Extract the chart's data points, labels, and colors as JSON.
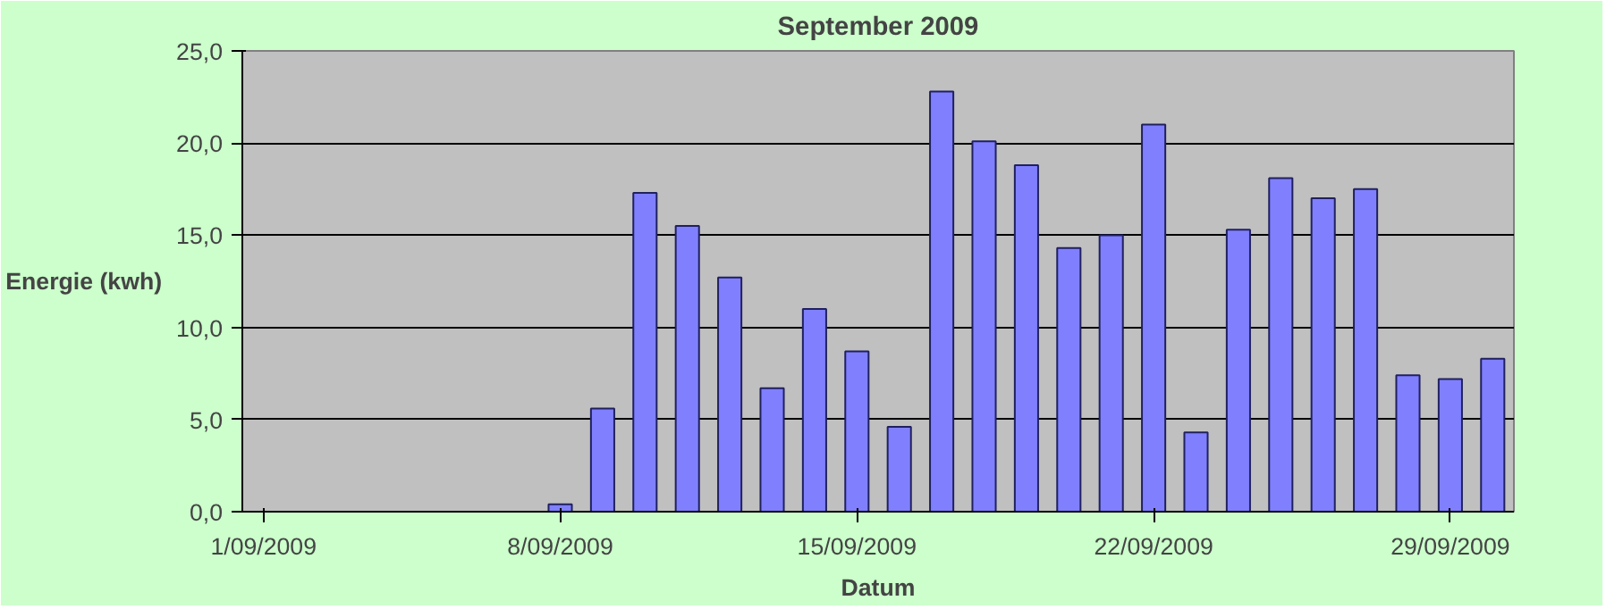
{
  "chart_data": {
    "type": "bar",
    "title": "September 2009",
    "xlabel": "Datum",
    "ylabel": "Energie (kwh)",
    "categories": [
      "1/09/2009",
      null,
      null,
      null,
      null,
      null,
      null,
      "8/09/2009",
      null,
      null,
      null,
      null,
      null,
      null,
      "15/09/2009",
      null,
      null,
      null,
      null,
      null,
      null,
      "22/09/2009",
      null,
      null,
      null,
      null,
      null,
      null,
      "29/09/2009",
      null
    ],
    "values": [
      null,
      null,
      null,
      null,
      null,
      null,
      null,
      0.4,
      5.6,
      17.3,
      15.5,
      12.7,
      6.7,
      11.0,
      8.7,
      4.6,
      22.8,
      20.1,
      18.8,
      14.3,
      15.0,
      21.0,
      4.3,
      15.3,
      18.1,
      17.0,
      17.5,
      7.4,
      7.2,
      8.3
    ],
    "color": "#8080ff",
    "ylim": [
      0,
      25
    ],
    "yticks": [
      {
        "value": 0,
        "label": "0,0"
      },
      {
        "value": 5,
        "label": "5,0"
      },
      {
        "value": 10,
        "label": "10,0"
      },
      {
        "value": 15,
        "label": "15,0"
      },
      {
        "value": 20,
        "label": "20,0"
      },
      {
        "value": 25,
        "label": "25,0"
      }
    ],
    "grid": "y"
  }
}
